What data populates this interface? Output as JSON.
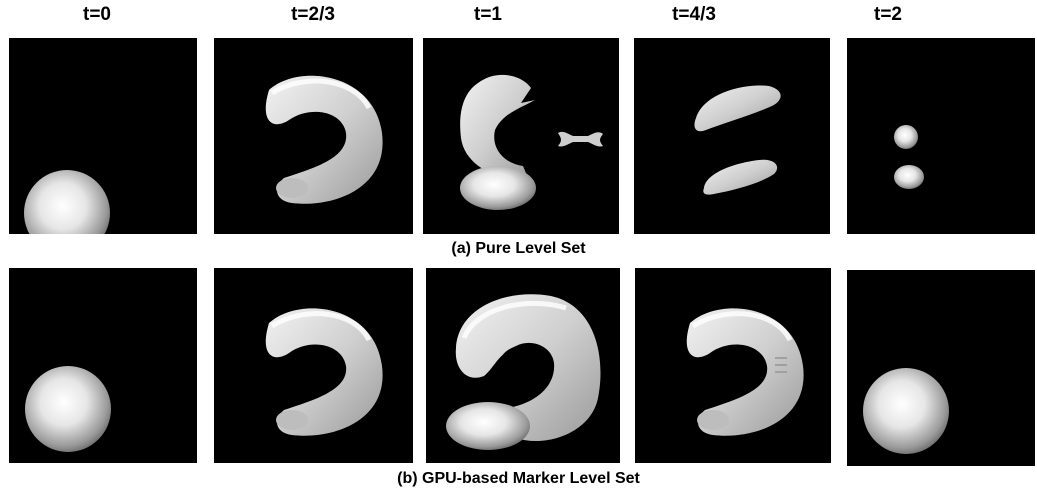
{
  "columns": [
    "t=0",
    "t=2/3",
    "t=1",
    "t=4/3",
    "t=2"
  ],
  "captions": {
    "a": "(a) Pure Level Set",
    "b": "(b) GPU-based Marker Level Set"
  }
}
